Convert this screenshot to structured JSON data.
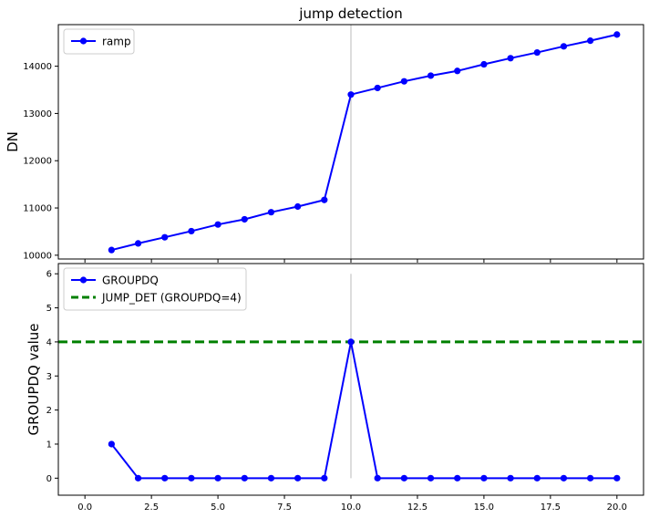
{
  "chart_data": [
    {
      "type": "line",
      "title": "jump detection",
      "xlabel": "",
      "ylabel": "DN",
      "xlim": [
        -1,
        21
      ],
      "ylim": [
        9920,
        14880
      ],
      "xticks": [
        0.0,
        2.5,
        5.0,
        7.5,
        10.0,
        12.5,
        15.0,
        17.5,
        20.0
      ],
      "xtick_labels": [],
      "yticks": [
        10000,
        11000,
        12000,
        13000,
        14000
      ],
      "ytick_labels": [
        "10000",
        "11000",
        "12000",
        "13000",
        "14000"
      ],
      "grid": false,
      "legend_position": "upper-left",
      "series": [
        {
          "name": "ramp",
          "color": "#0000ff",
          "style": "line-marker",
          "x": [
            1,
            2,
            3,
            4,
            5,
            6,
            7,
            8,
            9,
            10,
            11,
            12,
            13,
            14,
            15,
            16,
            17,
            18,
            19,
            20
          ],
          "y": [
            10110,
            10250,
            10380,
            10510,
            10650,
            10760,
            10910,
            11030,
            11170,
            13400,
            13540,
            13680,
            13800,
            13900,
            14040,
            14170,
            14290,
            14420,
            14540,
            14670
          ]
        }
      ],
      "vline": {
        "x": 10,
        "color": "#aaaaaa"
      }
    },
    {
      "type": "line",
      "title": "",
      "xlabel": "",
      "ylabel": "GROUPDQ value",
      "xlim": [
        -1,
        21
      ],
      "ylim": [
        -0.5,
        6.3
      ],
      "xticks": [
        0.0,
        2.5,
        5.0,
        7.5,
        10.0,
        12.5,
        15.0,
        17.5,
        20.0
      ],
      "xtick_labels": [
        "0.0",
        "2.5",
        "5.0",
        "7.5",
        "10.0",
        "12.5",
        "15.0",
        "17.5",
        "20.0"
      ],
      "yticks": [
        0,
        1,
        2,
        3,
        4,
        5,
        6
      ],
      "ytick_labels": [
        "0",
        "1",
        "2",
        "3",
        "4",
        "5",
        "6"
      ],
      "grid": false,
      "legend_position": "upper-left",
      "series": [
        {
          "name": "GROUPDQ",
          "color": "#0000ff",
          "style": "line-marker",
          "x": [
            1,
            2,
            3,
            4,
            5,
            6,
            7,
            8,
            9,
            10,
            11,
            12,
            13,
            14,
            15,
            16,
            17,
            18,
            19,
            20
          ],
          "y": [
            1,
            0,
            0,
            0,
            0,
            0,
            0,
            0,
            0,
            4,
            0,
            0,
            0,
            0,
            0,
            0,
            0,
            0,
            0,
            0
          ]
        }
      ],
      "hline": {
        "name": "JUMP_DET (GROUPDQ=4)",
        "y": 4,
        "color": "#008000",
        "style": "dashed"
      },
      "vline": {
        "x": 10,
        "y_range": [
          0,
          6
        ],
        "color": "#aaaaaa"
      }
    }
  ]
}
